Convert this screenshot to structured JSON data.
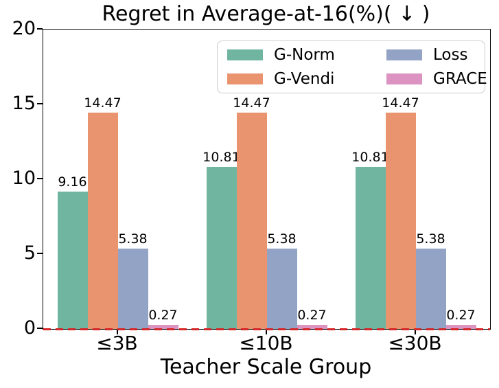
{
  "chart_data": {
    "type": "bar",
    "title": "Regret in Average-at-16(%)( ↓ )",
    "xlabel": "Teacher Scale Group",
    "ylabel": "",
    "categories": [
      "≤3B",
      "≤10B",
      "≤30B"
    ],
    "series": [
      {
        "name": "G-Norm",
        "color": "#70b5a0",
        "values": [
          9.16,
          10.81,
          10.81
        ]
      },
      {
        "name": "G-Vendi",
        "color": "#e9946f",
        "values": [
          14.47,
          14.47,
          14.47
        ]
      },
      {
        "name": "Loss",
        "color": "#93a3c5",
        "values": [
          5.38,
          5.38,
          5.38
        ]
      },
      {
        "name": "GRACE",
        "color": "#dc93c2",
        "values": [
          0.27,
          0.27,
          0.27
        ]
      }
    ],
    "ylim": [
      0,
      20
    ],
    "yticks": [
      "0",
      "5",
      "10",
      "15",
      "20"
    ],
    "grid": false,
    "legend_position": "upper center",
    "reference_line": {
      "y": 0,
      "color": "#d62728",
      "style": "dashed"
    },
    "value_labels_shown": true
  }
}
